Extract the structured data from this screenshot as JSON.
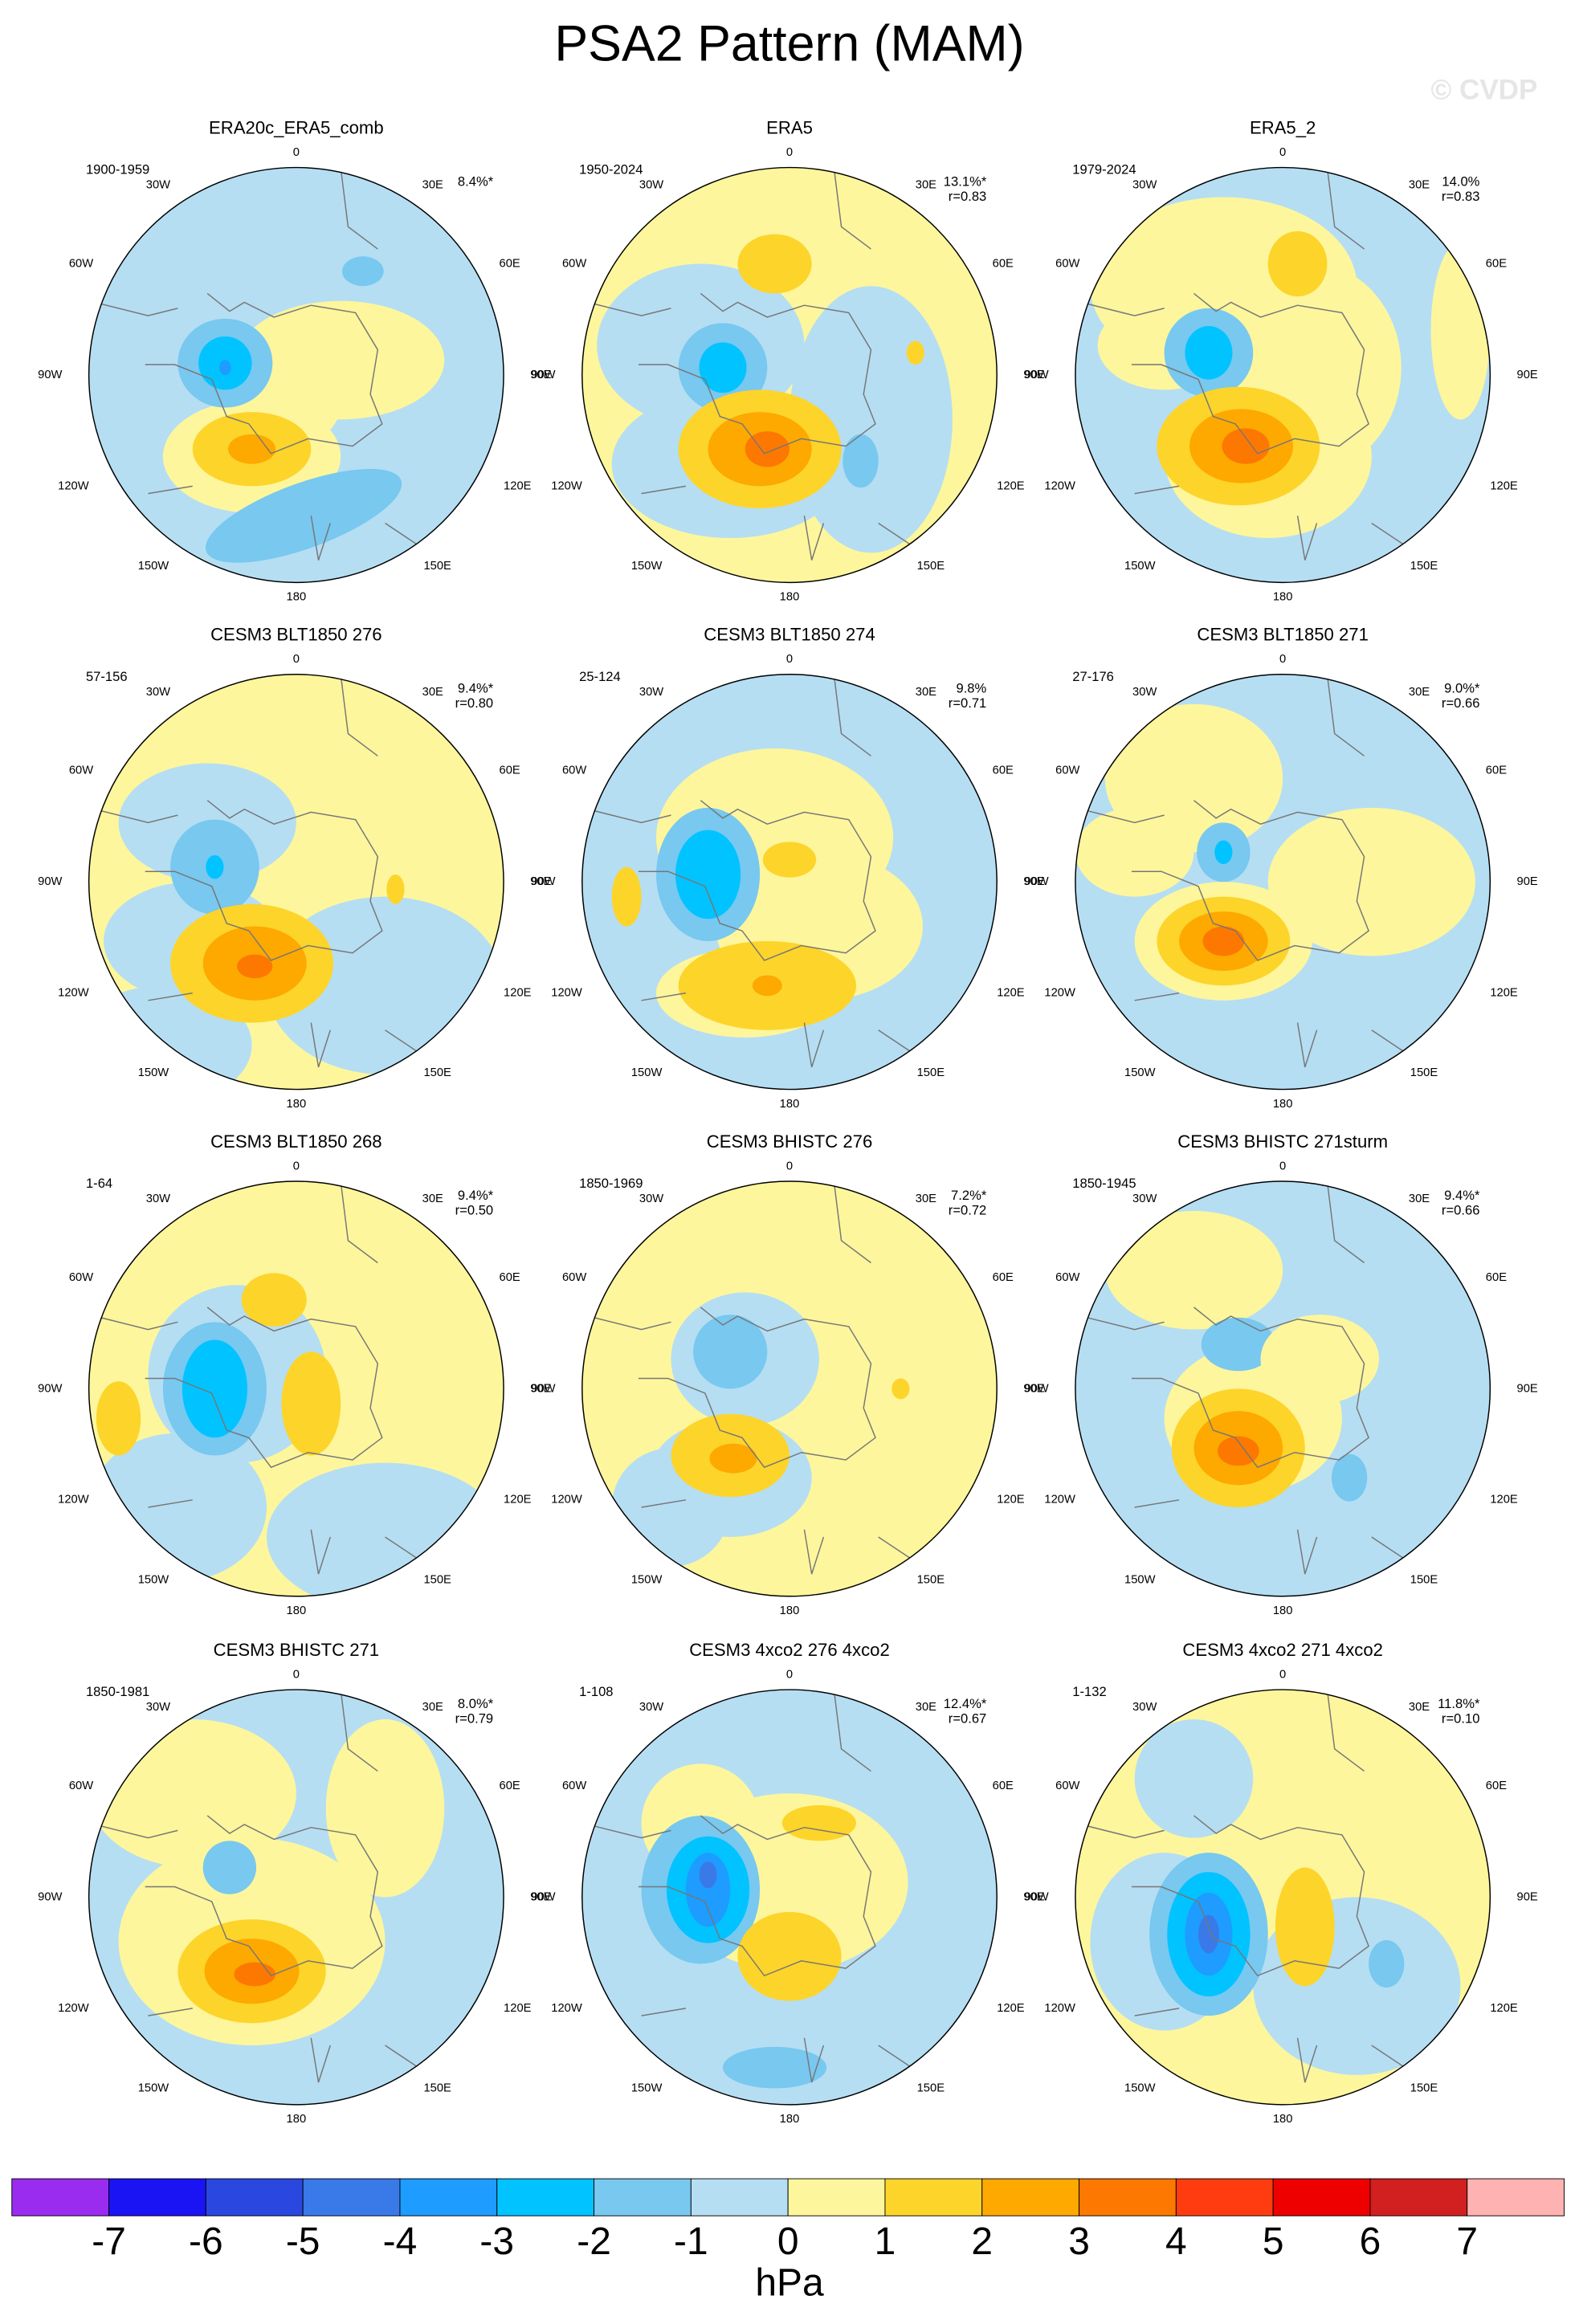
{
  "title": "PSA2 Pattern (MAM)",
  "watermark": "© CVDP",
  "longitude_labels": [
    "0",
    "30W",
    "30E",
    "60W",
    "60E",
    "90W",
    "90E",
    "120W",
    "120E",
    "150W",
    "150E",
    "180"
  ],
  "panels": [
    {
      "title": "ERA20c_ERA5_comb",
      "period": "1900-1959",
      "variance": "8.4%*"
    },
    {
      "title": "ERA5",
      "period": "1950-2024",
      "variance": "13.1%*",
      "r": "r=0.83"
    },
    {
      "title": "ERA5_2",
      "period": "1979-2024",
      "variance": "14.0%",
      "r": "r=0.83"
    },
    {
      "title": "CESM3 BLT1850 276",
      "period": "57-156",
      "variance": "9.4%*",
      "r": "r=0.80"
    },
    {
      "title": "CESM3 BLT1850 274",
      "period": "25-124",
      "variance": "9.8%",
      "r": "r=0.71"
    },
    {
      "title": "CESM3 BLT1850 271",
      "period": "27-176",
      "variance": "9.0%*",
      "r": "r=0.66"
    },
    {
      "title": "CESM3 BLT1850 268",
      "period": "1-64",
      "variance": "9.4%*",
      "r": "r=0.50"
    },
    {
      "title": "CESM3 BHISTC 276",
      "period": "1850-1969",
      "variance": "7.2%*",
      "r": "r=0.72"
    },
    {
      "title": "CESM3 BHISTC 271sturm",
      "period": "1850-1945",
      "variance": "9.4%*",
      "r": "r=0.66"
    },
    {
      "title": "CESM3 BHISTC 271",
      "period": "1850-1981",
      "variance": "8.0%*",
      "r": "r=0.79"
    },
    {
      "title": "CESM3 4xco2 276 4xco2",
      "period": "1-108",
      "variance": "12.4%*",
      "r": "r=0.67"
    },
    {
      "title": "CESM3 4xco2 271 4xco2",
      "period": "1-132",
      "variance": "11.8%*",
      "r": "r=0.10"
    }
  ],
  "colorbar": {
    "colors": [
      "#9a2cf0",
      "#1a14f5",
      "#2a48e0",
      "#3a7ae8",
      "#1e9cff",
      "#00c3ff",
      "#78c8f0",
      "#b5def3",
      "#fdf69c",
      "#fdd42a",
      "#fda900",
      "#fd7800",
      "#ff3c10",
      "#ee0000",
      "#d21f1f",
      "#ffb2b2"
    ],
    "ticks": [
      -7,
      -6,
      -5,
      -4,
      -3,
      -2,
      -1,
      0,
      1,
      2,
      3,
      4,
      5,
      6,
      7
    ],
    "unit": "hPa"
  }
}
